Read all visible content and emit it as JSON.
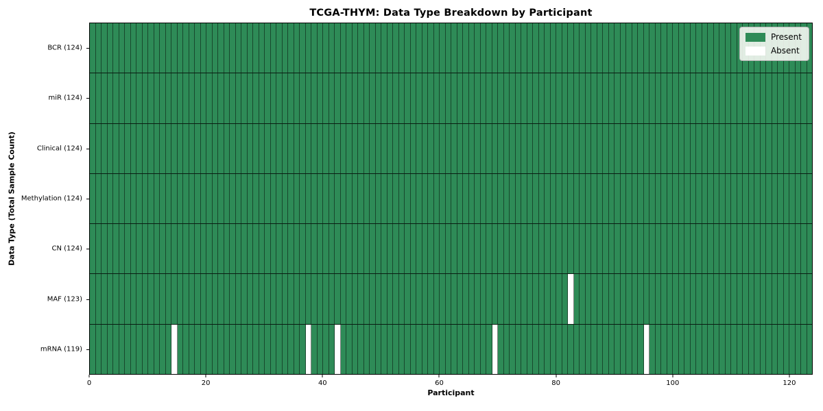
{
  "title": "TCGA-THYM: Data Type Breakdown by Participant",
  "xlabel": "Participant",
  "ylabel": "Data Type (Total Sample Count)",
  "legend": {
    "entries": [
      {
        "label": "Present",
        "color": "#2e8b57"
      },
      {
        "label": "Absent",
        "color": "#ffffff"
      }
    ]
  },
  "chart_data": {
    "type": "heatmap",
    "title": "TCGA-THYM: Data Type Breakdown by Participant",
    "xlabel": "Participant",
    "ylabel": "Data Type (Total Sample Count)",
    "n_participants": 124,
    "x_range": [
      0,
      124
    ],
    "x_ticks": [
      0,
      20,
      40,
      60,
      80,
      100,
      120
    ],
    "legend_position": "upper right",
    "grid": false,
    "rows": [
      {
        "label": "BCR (124)",
        "present_count": 124,
        "absent_indices": []
      },
      {
        "label": "miR (124)",
        "present_count": 124,
        "absent_indices": []
      },
      {
        "label": "Clinical (124)",
        "present_count": 124,
        "absent_indices": []
      },
      {
        "label": "Methylation (124)",
        "present_count": 124,
        "absent_indices": []
      },
      {
        "label": "CN (124)",
        "present_count": 124,
        "absent_indices": []
      },
      {
        "label": "MAF (123)",
        "present_count": 123,
        "absent_indices": [
          82
        ]
      },
      {
        "label": "mRNA (119)",
        "present_count": 119,
        "absent_indices": [
          14,
          37,
          42,
          69,
          95
        ]
      }
    ],
    "colors": {
      "present": "#2e8b57",
      "absent": "#ffffff",
      "cell_edge": "rgba(0,0,0,0.48)",
      "row_edge": "rgba(0,0,0,0.80)",
      "spine": "#000000"
    }
  }
}
